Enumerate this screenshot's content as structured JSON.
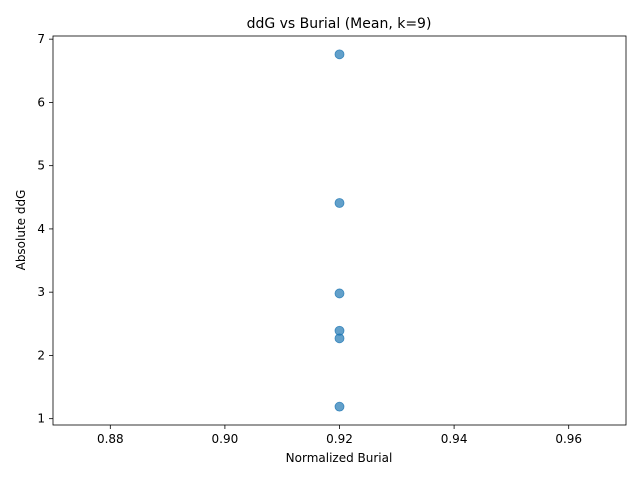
{
  "chart_data": {
    "type": "scatter",
    "title": "ddG vs Burial (Mean, k=9)",
    "xlabel": "Normalized Burial",
    "ylabel": "Absolute ddG",
    "xlim": [
      0.87,
      0.97
    ],
    "ylim": [
      0.9,
      7.05
    ],
    "xticks": [
      "0.88",
      "0.90",
      "0.92",
      "0.94",
      "0.96"
    ],
    "yticks": [
      "1",
      "2",
      "3",
      "4",
      "5",
      "6",
      "7"
    ],
    "grid": false,
    "point_color": "#1f77b4",
    "points": [
      {
        "x": 0.92,
        "y": 6.76
      },
      {
        "x": 0.92,
        "y": 4.41
      },
      {
        "x": 0.92,
        "y": 2.98
      },
      {
        "x": 0.92,
        "y": 2.39
      },
      {
        "x": 0.92,
        "y": 2.27
      },
      {
        "x": 0.92,
        "y": 1.19
      }
    ]
  }
}
